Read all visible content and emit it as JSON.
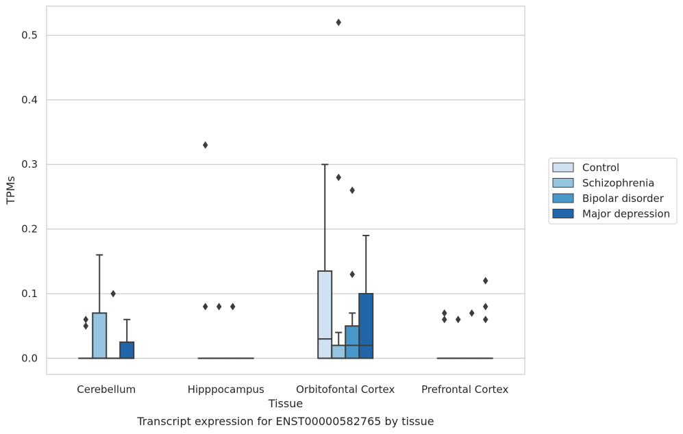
{
  "caption": "Transcript expression for ENST00000582765 by tissue",
  "chart_data": {
    "type": "boxplot",
    "xlabel": "Tissue",
    "ylabel": "TPMs",
    "ylim": [
      -0.025,
      0.545
    ],
    "yticks": [
      0.0,
      0.1,
      0.2,
      0.3,
      0.4,
      0.5
    ],
    "ytick_labels": [
      "0.0",
      "0.1",
      "0.2",
      "0.3",
      "0.4",
      "0.5"
    ],
    "grid": "horizontal",
    "legend_position": "right",
    "categories": [
      "Cerebellum",
      "Hipppocampus",
      "Orbitofontal Cortex",
      "Prefrontal Cortex"
    ],
    "series": [
      {
        "name": "Control",
        "color": "#d0e1f2",
        "boxes": [
          {
            "q1": 0,
            "median": 0,
            "q3": 0,
            "whisker_low": 0,
            "whisker_high": 0,
            "outliers": [
              0.05,
              0.06
            ]
          },
          {
            "q1": 0,
            "median": 0,
            "q3": 0,
            "whisker_low": 0,
            "whisker_high": 0,
            "outliers": [
              0.33,
              0.08
            ]
          },
          {
            "q1": 0,
            "median": 0.03,
            "q3": 0.135,
            "whisker_low": 0,
            "whisker_high": 0.3,
            "outliers": []
          },
          {
            "q1": 0,
            "median": 0,
            "q3": 0,
            "whisker_low": 0,
            "whisker_high": 0,
            "outliers": [
              0.06,
              0.07
            ]
          }
        ]
      },
      {
        "name": "Schizophrenia",
        "color": "#94c4df",
        "boxes": [
          {
            "q1": 0,
            "median": 0,
            "q3": 0.07,
            "whisker_low": 0,
            "whisker_high": 0.16,
            "outliers": []
          },
          {
            "q1": 0,
            "median": 0,
            "q3": 0,
            "whisker_low": 0,
            "whisker_high": 0,
            "outliers": [
              0.08
            ]
          },
          {
            "q1": 0,
            "median": 0,
            "q3": 0.02,
            "whisker_low": 0,
            "whisker_high": 0.04,
            "outliers": [
              0.52,
              0.28
            ]
          },
          {
            "q1": 0,
            "median": 0,
            "q3": 0,
            "whisker_low": 0,
            "whisker_high": 0,
            "outliers": [
              0.06
            ]
          }
        ]
      },
      {
        "name": "Bipolar disorder",
        "color": "#4a98c9",
        "boxes": [
          {
            "q1": 0,
            "median": 0,
            "q3": 0,
            "whisker_low": 0,
            "whisker_high": 0,
            "outliers": [
              0.1
            ]
          },
          {
            "q1": 0,
            "median": 0,
            "q3": 0,
            "whisker_low": 0,
            "whisker_high": 0,
            "outliers": [
              0.08
            ]
          },
          {
            "q1": 0,
            "median": 0.02,
            "q3": 0.05,
            "whisker_low": 0,
            "whisker_high": 0.07,
            "outliers": [
              0.26,
              0.13
            ]
          },
          {
            "q1": 0,
            "median": 0,
            "q3": 0,
            "whisker_low": 0,
            "whisker_high": 0,
            "outliers": [
              0.07
            ]
          }
        ]
      },
      {
        "name": "Major depression",
        "color": "#2165ab",
        "boxes": [
          {
            "q1": 0,
            "median": 0,
            "q3": 0.025,
            "whisker_low": 0,
            "whisker_high": 0.06,
            "outliers": []
          },
          {
            "q1": 0,
            "median": 0,
            "q3": 0,
            "whisker_low": 0,
            "whisker_high": 0,
            "outliers": []
          },
          {
            "q1": 0,
            "median": 0.02,
            "q3": 0.1,
            "whisker_low": 0,
            "whisker_high": 0.19,
            "outliers": []
          },
          {
            "q1": 0,
            "median": 0,
            "q3": 0,
            "whisker_low": 0,
            "whisker_high": 0,
            "outliers": [
              0.12,
              0.08,
              0.06
            ]
          }
        ]
      }
    ]
  }
}
